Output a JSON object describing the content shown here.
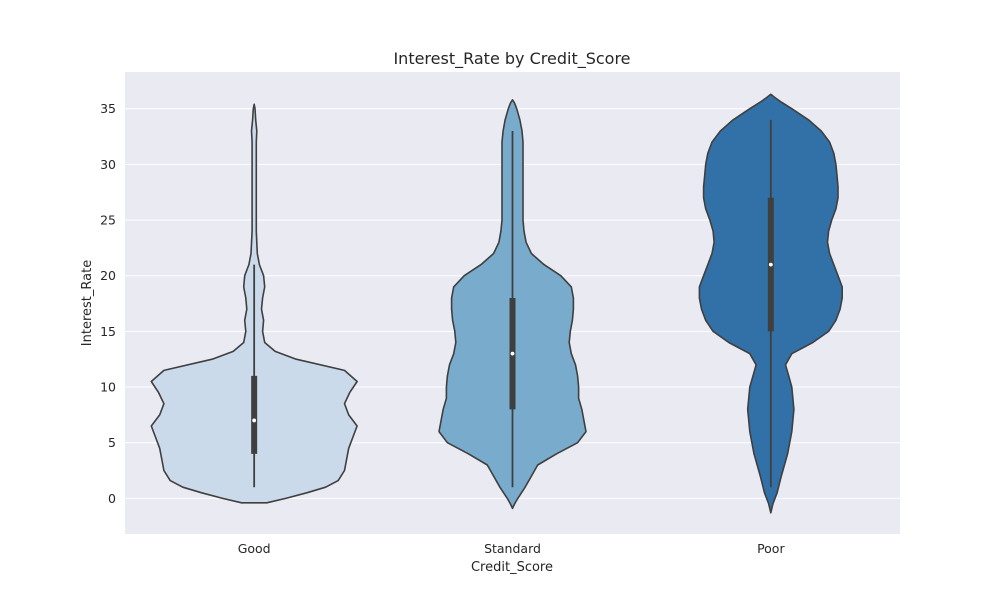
{
  "chart_data": {
    "type": "violin",
    "title": "Interest_Rate by Credit_Score",
    "xlabel": "Credit_Score",
    "ylabel": "Interest_Rate",
    "ylim": [
      -3.2,
      38.3
    ],
    "yticks": [
      0,
      5,
      10,
      15,
      20,
      25,
      30,
      35
    ],
    "grid": true,
    "categories": [
      "Good",
      "Standard",
      "Poor"
    ],
    "series": [
      {
        "category": "Good",
        "color": "#cadaea",
        "whisker": [
          1,
          21
        ],
        "q1": 4,
        "median": 7,
        "q3": 11,
        "extent": [
          -0.4,
          35.4
        ],
        "profile": [
          [
            -0.4,
            0.12
          ],
          [
            0,
            0.3
          ],
          [
            0.5,
            0.5
          ],
          [
            1,
            0.68
          ],
          [
            1.6,
            0.8
          ],
          [
            2.5,
            0.86
          ],
          [
            3.5,
            0.88
          ],
          [
            4.5,
            0.9
          ],
          [
            5.5,
            0.94
          ],
          [
            6.5,
            0.98
          ],
          [
            7.5,
            0.9
          ],
          [
            8.5,
            0.86
          ],
          [
            9.5,
            0.91
          ],
          [
            10.5,
            0.98
          ],
          [
            11.5,
            0.86
          ],
          [
            12.5,
            0.4
          ],
          [
            13.2,
            0.2
          ],
          [
            14,
            0.1
          ],
          [
            15,
            0.08
          ],
          [
            16,
            0.09
          ],
          [
            17,
            0.07
          ],
          [
            18,
            0.08
          ],
          [
            19,
            0.1
          ],
          [
            20,
            0.09
          ],
          [
            21,
            0.05
          ],
          [
            22,
            0.03
          ],
          [
            24,
            0.02
          ],
          [
            26,
            0.02
          ],
          [
            28,
            0.02
          ],
          [
            30,
            0.02
          ],
          [
            32,
            0.02
          ],
          [
            33,
            0.025
          ],
          [
            34,
            0.015
          ],
          [
            35,
            0.008
          ],
          [
            35.4,
            0
          ]
        ]
      },
      {
        "category": "Standard",
        "color": "#78abcc",
        "whisker": [
          1,
          33
        ],
        "q1": 8,
        "median": 13,
        "q3": 18,
        "extent": [
          -0.9,
          35.8
        ],
        "profile": [
          [
            -0.9,
            0
          ],
          [
            -0.5,
            0.02
          ],
          [
            0,
            0.05
          ],
          [
            1,
            0.12
          ],
          [
            2,
            0.18
          ],
          [
            3,
            0.24
          ],
          [
            4,
            0.42
          ],
          [
            5,
            0.62
          ],
          [
            6,
            0.7
          ],
          [
            7,
            0.68
          ],
          [
            8,
            0.66
          ],
          [
            9,
            0.63
          ],
          [
            10,
            0.63
          ],
          [
            11,
            0.62
          ],
          [
            12,
            0.6
          ],
          [
            13,
            0.56
          ],
          [
            14,
            0.54
          ],
          [
            15,
            0.55
          ],
          [
            16,
            0.57
          ],
          [
            17,
            0.58
          ],
          [
            18,
            0.58
          ],
          [
            19,
            0.56
          ],
          [
            20,
            0.46
          ],
          [
            21,
            0.3
          ],
          [
            22,
            0.18
          ],
          [
            23,
            0.13
          ],
          [
            24,
            0.11
          ],
          [
            25,
            0.1
          ],
          [
            26,
            0.1
          ],
          [
            28,
            0.1
          ],
          [
            30,
            0.1
          ],
          [
            32,
            0.1
          ],
          [
            33,
            0.09
          ],
          [
            34,
            0.07
          ],
          [
            35,
            0.04
          ],
          [
            35.5,
            0.02
          ],
          [
            35.8,
            0
          ]
        ]
      },
      {
        "category": "Poor",
        "color": "#3171a8",
        "whisker": [
          1,
          34
        ],
        "q1": 15,
        "median": 21,
        "q3": 27,
        "extent": [
          -1.3,
          36.3
        ],
        "profile": [
          [
            -1.3,
            0
          ],
          [
            -0.5,
            0.02
          ],
          [
            0.5,
            0.06
          ],
          [
            2,
            0.1
          ],
          [
            4,
            0.16
          ],
          [
            6,
            0.2
          ],
          [
            8,
            0.22
          ],
          [
            10,
            0.2
          ],
          [
            11,
            0.17
          ],
          [
            12,
            0.14
          ],
          [
            13,
            0.2
          ],
          [
            14,
            0.4
          ],
          [
            15,
            0.55
          ],
          [
            16,
            0.62
          ],
          [
            17,
            0.66
          ],
          [
            18,
            0.68
          ],
          [
            19,
            0.68
          ],
          [
            20,
            0.64
          ],
          [
            21,
            0.6
          ],
          [
            22,
            0.56
          ],
          [
            23,
            0.54
          ],
          [
            24,
            0.55
          ],
          [
            25,
            0.58
          ],
          [
            26,
            0.62
          ],
          [
            27,
            0.64
          ],
          [
            28,
            0.64
          ],
          [
            29,
            0.63
          ],
          [
            30,
            0.62
          ],
          [
            31,
            0.6
          ],
          [
            32,
            0.56
          ],
          [
            33,
            0.48
          ],
          [
            34,
            0.36
          ],
          [
            35,
            0.2
          ],
          [
            35.6,
            0.1
          ],
          [
            36,
            0.04
          ],
          [
            36.3,
            0
          ]
        ]
      }
    ]
  }
}
